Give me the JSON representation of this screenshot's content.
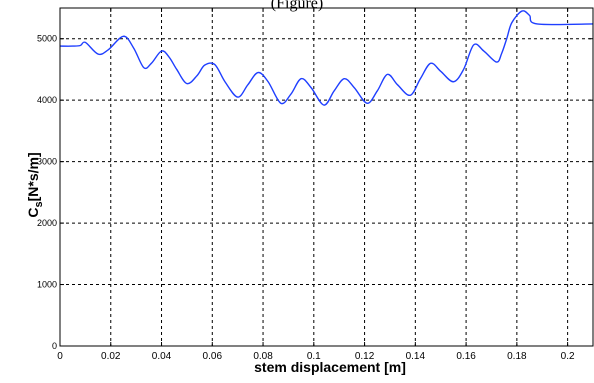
{
  "caption_fragment": "(Figure)",
  "chart_data": {
    "type": "line",
    "title": "",
    "xlabel": "stem displacement [m]",
    "ylabel": "Cs[N*s/m]",
    "xlim": [
      0,
      0.21
    ],
    "ylim": [
      0,
      5500
    ],
    "x_ticks": [
      0,
      0.02,
      0.04,
      0.06,
      0.08,
      0.1,
      0.12,
      0.14,
      0.16,
      0.18,
      0.2
    ],
    "x_tick_labels": [
      "0",
      "0.02",
      "0.04",
      "0.06",
      "0.08",
      "0.1",
      "0.12",
      "0.14",
      "0.16",
      "0.18",
      "0.2"
    ],
    "y_ticks": [
      0,
      1000,
      2000,
      3000,
      4000,
      5000
    ],
    "y_tick_labels": [
      "0",
      "1000",
      "2000",
      "3000",
      "4000",
      "5000"
    ],
    "grid": true,
    "line_color": "#1f3fff",
    "series": [
      {
        "x": [
          0,
          0.005,
          0.008,
          0.01,
          0.015,
          0.019,
          0.025,
          0.029,
          0.033,
          0.036,
          0.04,
          0.043,
          0.046,
          0.05,
          0.054,
          0.057,
          0.061,
          0.065,
          0.07,
          0.074,
          0.078,
          0.082,
          0.087,
          0.091,
          0.095,
          0.099,
          0.104,
          0.108,
          0.112,
          0.116,
          0.121,
          0.125,
          0.129,
          0.133,
          0.138,
          0.142,
          0.146,
          0.15,
          0.155,
          0.159,
          0.163,
          0.167,
          0.172,
          0.174,
          0.176,
          0.178,
          0.182,
          0.185,
          0.188,
          0.21
        ],
        "y": [
          4880,
          4880,
          4890,
          4940,
          4750,
          4820,
          5040,
          4850,
          4530,
          4600,
          4800,
          4700,
          4500,
          4270,
          4400,
          4570,
          4580,
          4300,
          4050,
          4250,
          4450,
          4300,
          3950,
          4100,
          4350,
          4200,
          3920,
          4150,
          4350,
          4200,
          3950,
          4150,
          4420,
          4250,
          4080,
          4350,
          4600,
          4470,
          4300,
          4500,
          4900,
          4800,
          4620,
          4760,
          5000,
          5260,
          5450,
          5380,
          5240,
          5240
        ]
      }
    ]
  }
}
